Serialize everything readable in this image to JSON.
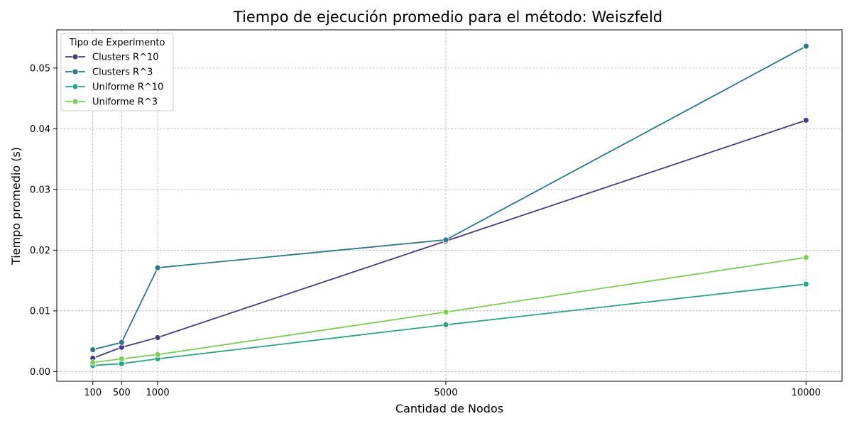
{
  "chart_data": {
    "type": "line",
    "title": "Tiempo de ejecución promedio para el método: Weiszfeld",
    "xlabel": "Cantidad de Nodos",
    "ylabel": "Tiempo promedio (s)",
    "x": [
      100,
      500,
      1000,
      5000,
      10000
    ],
    "x_ticks": [
      "100",
      "500",
      "1000",
      "5000",
      "10000"
    ],
    "y_ticks": [
      "0.00",
      "0.01",
      "0.02",
      "0.03",
      "0.04",
      "0.05"
    ],
    "xlim": [
      -400,
      10500
    ],
    "ylim": [
      -0.0016,
      0.0563
    ],
    "grid": true,
    "legend": {
      "title": "Tipo de Experimento",
      "position": "top-left"
    },
    "series": [
      {
        "name": "Clusters R^10",
        "color": "#433e85",
        "values": [
          0.0022,
          0.004,
          0.0056,
          0.0215,
          0.0414
        ]
      },
      {
        "name": "Clusters R^3",
        "color": "#2a788e",
        "values": [
          0.0036,
          0.0048,
          0.0171,
          0.0217,
          0.0536
        ]
      },
      {
        "name": "Uniforme R^10",
        "color": "#22a884",
        "values": [
          0.001,
          0.0013,
          0.0021,
          0.0077,
          0.0144
        ]
      },
      {
        "name": "Uniforme R^3",
        "color": "#7ad151",
        "values": [
          0.0015,
          0.0021,
          0.0028,
          0.0098,
          0.0188
        ]
      }
    ]
  }
}
